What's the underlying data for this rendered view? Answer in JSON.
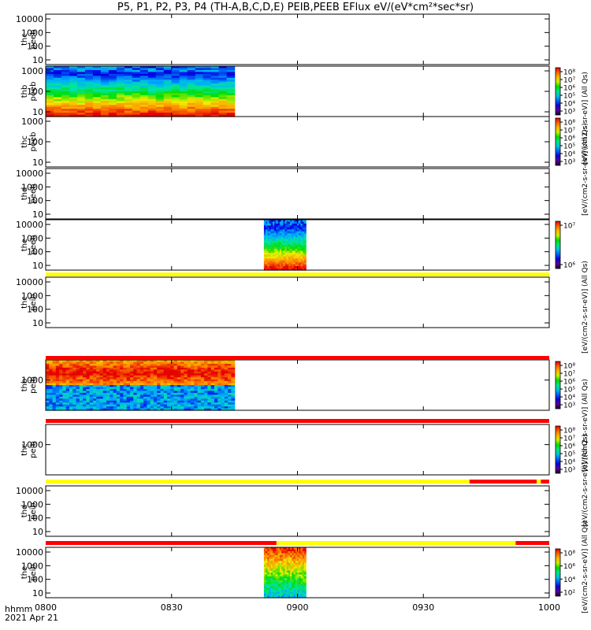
{
  "title": "P5, P1, P2, P3, P4 (TH-A,B,C,D,E) PEIB,PEEB EFlux eV/(eV*cm²*sec*sr)",
  "time_axis": {
    "label_unit": "hhmm",
    "date": "2021 Apr 21"
  },
  "colors": {
    "flag_yellow": "#ffff00",
    "flag_red": "#ff0000",
    "axis": "#000000"
  },
  "chart_data": {
    "type": "heatmap",
    "x_ticks": [
      "0800",
      "0830",
      "0900",
      "0930",
      "1000"
    ],
    "x_range": [
      "0800",
      "1000"
    ],
    "panels": [
      {
        "label": [
          "thc",
          "peeb"
        ],
        "y_ticks": [
          "10000",
          "1000",
          "100",
          "10"
        ],
        "log_y": true,
        "data_interval": null,
        "colorbar": null
      },
      {
        "label": [
          "thb",
          "peeb"
        ],
        "y_ticks": [
          "1000",
          "100",
          "10"
        ],
        "log_y": true,
        "data_interval": [
          "0800",
          "0845"
        ],
        "style": "electron",
        "colorbar": {
          "ticks": [
            "10⁸",
            "10⁷",
            "10⁶",
            "10⁵",
            "10⁴",
            "10³"
          ]
        }
      },
      {
        "label": [
          "thc",
          "peeb"
        ],
        "y_ticks": [
          "1000",
          "100",
          "10"
        ],
        "log_y": true,
        "data_interval": null,
        "colorbar": {
          "ticks": [
            "10⁸",
            "10⁷",
            "10⁶",
            "10⁵",
            "10⁴",
            "10³"
          ]
        }
      },
      {
        "label": [
          "thd",
          "peeb"
        ],
        "y_ticks": [
          "10000",
          "1000",
          "100",
          "10"
        ],
        "log_y": true,
        "data_interval": null,
        "colorbar": null
      },
      {
        "label": [
          "the",
          "peeb"
        ],
        "y_ticks": [
          "10000",
          "1000",
          "100",
          "10"
        ],
        "log_y": true,
        "data_interval": [
          "0852",
          "0902"
        ],
        "style": "electron",
        "colorbar": {
          "ticks": [
            "10⁷",
            "10⁶"
          ]
        }
      },
      {
        "label": [
          "thc",
          "peib"
        ],
        "y_ticks": [
          "10000",
          "1000",
          "100",
          "10"
        ],
        "log_y": true,
        "data_interval": null,
        "colorbar": null
      },
      {
        "label": [
          "thb",
          "peib"
        ],
        "y_ticks": [
          "1000"
        ],
        "log_y": true,
        "data_interval": [
          "0800",
          "0845"
        ],
        "style": "ion",
        "colorbar": {
          "ticks": [
            "10⁸",
            "10⁷",
            "10⁶",
            "10⁵",
            "10⁴",
            "10³"
          ]
        }
      },
      {
        "label": [
          "thc",
          "peib"
        ],
        "y_ticks": [
          "1000"
        ],
        "log_y": true,
        "data_interval": null,
        "colorbar": {
          "ticks": [
            "10⁸",
            "10⁷",
            "10⁶",
            "10⁵",
            "10⁴",
            "10³"
          ]
        }
      },
      {
        "label": [
          "thd",
          "peib"
        ],
        "y_ticks": [
          "10000",
          "1000",
          "100",
          "10"
        ],
        "log_y": true,
        "data_interval": null,
        "colorbar": null
      },
      {
        "label": [
          "the",
          "peib"
        ],
        "y_ticks": [
          "10000",
          "1000",
          "100",
          "10"
        ],
        "log_y": true,
        "data_interval": [
          "0852",
          "0902"
        ],
        "style": "ion_e",
        "colorbar": {
          "ticks": [
            "10⁸",
            "10⁶",
            "10⁴",
            "10²"
          ]
        }
      }
    ],
    "flag_bars": [
      {
        "after_panel": 4,
        "segments": [
          {
            "from": "0800",
            "to": "1000",
            "color": "yellow"
          }
        ]
      },
      {
        "after_panel": 5,
        "segments": [
          {
            "from": "0800",
            "to": "1000",
            "color": "red"
          }
        ]
      },
      {
        "after_panel": 6,
        "segments": [
          {
            "from": "0800",
            "to": "1000",
            "color": "red"
          }
        ]
      },
      {
        "after_panel": 7,
        "segments": [
          {
            "from": "0800",
            "to": "0941",
            "color": "yellow"
          },
          {
            "from": "0941",
            "to": "0957",
            "color": "red"
          },
          {
            "from": "0957",
            "to": "0958",
            "color": "yellow"
          },
          {
            "from": "0958",
            "to": "1000",
            "color": "red"
          }
        ]
      },
      {
        "after_panel": 8,
        "segments": [
          {
            "from": "0800",
            "to": "0855",
            "color": "red"
          },
          {
            "from": "0855",
            "to": "0952",
            "color": "yellow"
          },
          {
            "from": "0952",
            "to": "1000",
            "color": "red"
          }
        ]
      }
    ],
    "colorbar_labels": [
      "[eV/(cm2-s-sr-eV)] (All Qs)",
      "[eV/(cm2-s-sr-eV)] (All Qs)",
      "[eV/(cm2-s-sr-eV)] (All Qs)",
      "[eV/(cm2-s-sr-eV)] (All Qs)",
      "[eV/(cm2-s-sr-eV)] (All Qs)",
      "[eV/(cm2-s-sr-eV)] (All Qs)"
    ]
  }
}
